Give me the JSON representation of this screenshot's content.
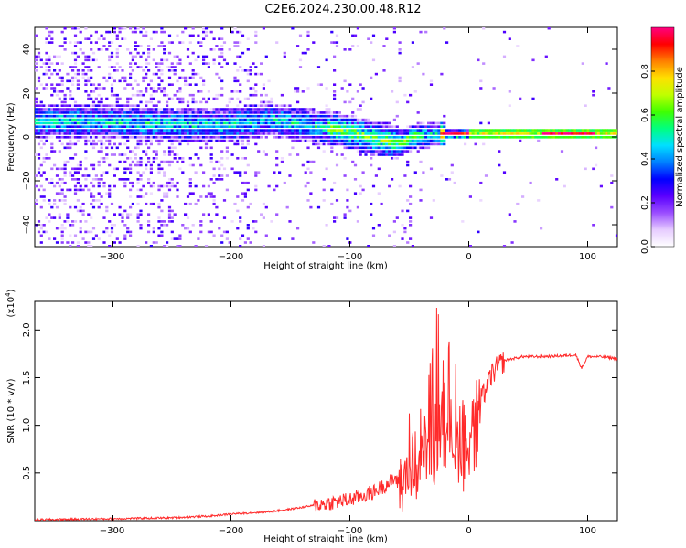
{
  "chart_data": [
    {
      "type": "heatmap",
      "title": "C2E6.2024.230.00.48.R12",
      "xlabel": "Height of straight line (km)",
      "ylabel": "Frequency (Hz)",
      "xlim": [
        -365,
        125
      ],
      "ylim": [
        -50,
        50
      ],
      "xticks": [
        -300,
        -200,
        -100,
        0,
        100
      ],
      "yticks": [
        -40,
        -20,
        0,
        20,
        40
      ],
      "grid": false,
      "colorbar": {
        "label": "Normalized spectral amplitude",
        "range": [
          0,
          1
        ],
        "ticks": [
          "0.0",
          "0.2",
          "0.4",
          "0.6",
          "0.8"
        ],
        "colors": [
          "#ffffff",
          "#e6ccff",
          "#9a4dff",
          "#5a00ff",
          "#0000ff",
          "#0080ff",
          "#00e0ff",
          "#00ff80",
          "#40ff00",
          "#c0ff00",
          "#ffe000",
          "#ff8000",
          "#ff0000",
          "#ff0080"
        ]
      },
      "ridge": {
        "x": [
          -320,
          -280,
          -240,
          -200,
          -170,
          -140,
          -110,
          -80,
          -60,
          -45,
          -30,
          -10,
          20,
          60,
          100,
          125
        ],
        "y": [
          7,
          6,
          5,
          5,
          8,
          5,
          3,
          -1,
          -3,
          0,
          1,
          1,
          1,
          1,
          1,
          1
        ]
      }
    },
    {
      "type": "line",
      "title": "",
      "xlabel": "Height of straight line (km)",
      "ylabel": "SNR (10 * v/v)",
      "ylabel_exponent": "(x10",
      "ylabel_exponent_power": "4",
      "xlim": [
        -365,
        125
      ],
      "ylim": [
        0,
        2.3
      ],
      "xticks": [
        -300,
        -200,
        -100,
        0,
        100
      ],
      "yticks": [
        0.5,
        1.0,
        1.5,
        2.0
      ],
      "series_color": "#ff2a2a",
      "series": [
        {
          "x": [
            -365,
            -300,
            -250,
            -215,
            -200,
            -170,
            -150,
            -120,
            -100,
            -80,
            -60,
            -45,
            -35,
            -28,
            -22,
            -18,
            -12,
            -5,
            0,
            10,
            20,
            30,
            45,
            60,
            80,
            90,
            95,
            100,
            110,
            125
          ],
          "y": [
            0.01,
            0.02,
            0.03,
            0.05,
            0.07,
            0.09,
            0.12,
            0.18,
            0.22,
            0.3,
            0.45,
            0.65,
            1.0,
            1.35,
            1.65,
            1.2,
            1.05,
            1.0,
            1.05,
            1.25,
            1.55,
            1.68,
            1.72,
            1.72,
            1.73,
            1.74,
            1.6,
            1.72,
            1.72,
            1.7
          ]
        }
      ]
    }
  ]
}
